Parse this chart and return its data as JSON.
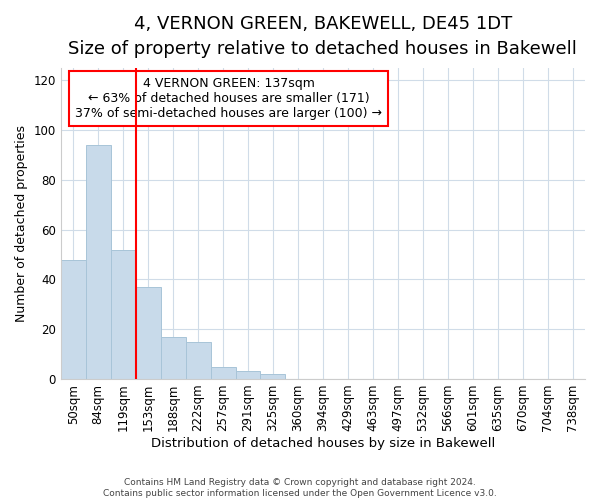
{
  "title": "4, VERNON GREEN, BAKEWELL, DE45 1DT",
  "subtitle": "Size of property relative to detached houses in Bakewell",
  "xlabel": "Distribution of detached houses by size in Bakewell",
  "ylabel": "Number of detached properties",
  "bar_labels": [
    "50sqm",
    "84sqm",
    "119sqm",
    "153sqm",
    "188sqm",
    "222sqm",
    "257sqm",
    "291sqm",
    "325sqm",
    "360sqm",
    "394sqm",
    "429sqm",
    "463sqm",
    "497sqm",
    "532sqm",
    "566sqm",
    "601sqm",
    "635sqm",
    "670sqm",
    "704sqm",
    "738sqm"
  ],
  "bar_values": [
    48,
    94,
    52,
    37,
    17,
    15,
    5,
    3,
    2,
    0,
    0,
    0,
    0,
    0,
    0,
    0,
    0,
    0,
    0,
    0,
    0
  ],
  "bar_color": "#c8daea",
  "bar_edge_color": "#a8c4d8",
  "red_line_index": 3,
  "annotation_line1": "4 VERNON GREEN: 137sqm",
  "annotation_line2": "← 63% of detached houses are smaller (171)",
  "annotation_line3": "37% of semi-detached houses are larger (100) →",
  "ylim": [
    0,
    125
  ],
  "yticks": [
    0,
    20,
    40,
    60,
    80,
    100,
    120
  ],
  "title_fontsize": 13,
  "subtitle_fontsize": 10.5,
  "xlabel_fontsize": 9.5,
  "ylabel_fontsize": 9,
  "tick_fontsize": 8.5,
  "annotation_fontsize": 9,
  "footer1": "Contains HM Land Registry data © Crown copyright and database right 2024.",
  "footer2": "Contains public sector information licensed under the Open Government Licence v3.0.",
  "background_color": "#ffffff",
  "plot_bg_color": "#ffffff",
  "grid_color": "#d0dce8"
}
